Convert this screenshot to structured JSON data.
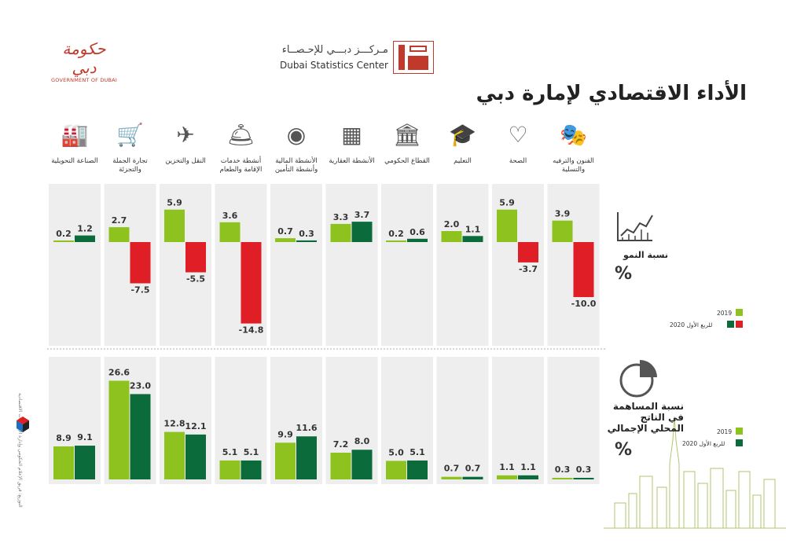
{
  "header": {
    "gov_logo_ar": "حكومة دبي",
    "gov_logo_en": "GOVERNMENT OF DUBAI",
    "dsc_ar": "مـركـــز دبـــي للإحـصــاء",
    "dsc_en": "Dubai Statistics Center"
  },
  "title": "الأداء الاقتصادي لإمارة دبي",
  "colors": {
    "y2019": "#8dc21f",
    "q1_2020_pos": "#0b6b3a",
    "q1_2020_neg": "#e01e26",
    "panel": "#eeeeee"
  },
  "growth_section": {
    "label": "نسبة النمو",
    "pct": "%",
    "legend_2019": "2019",
    "legend_2020": "للربع الأول 2020"
  },
  "share_section": {
    "label": "نسبة المساهمة في الناتج المحلي الإجمالي",
    "pct": "%",
    "legend_2019": "2019",
    "legend_2020": "للربع الأول 2020"
  },
  "side_credit": "التوزيع: فريق الإعلام الحكومي وإدارة الإحصاءات الاقتصادية",
  "chart_data": [
    {
      "type": "bar",
      "title": "نسبة النمو",
      "categories": [
        "الصناعة التحويلية",
        "تجارة الجملة والتجزئة",
        "النقل والتخزين",
        "أنشطة خدمات الإقامة والطعام",
        "الأنشطة المالية وأنشطة التأمين",
        "الأنشطة العقارية",
        "القطاع الحكومي",
        "التعليم",
        "الصحة",
        "الفنون والترفيه والتسلية"
      ],
      "icons": [
        "factory-robot-icon",
        "shopping-cart-icon",
        "plane-truck-icon",
        "food-cloche-icon",
        "coin-icon",
        "building-icon",
        "government-building-icon",
        "graduation-cap-icon",
        "heart-hands-icon",
        "theater-mask-icon"
      ],
      "series": [
        {
          "name": "2019",
          "values": [
            0.2,
            2.7,
            5.9,
            3.6,
            0.7,
            3.3,
            0.2,
            2.0,
            5.9,
            3.9
          ]
        },
        {
          "name": "للربع الأول 2020",
          "values": [
            1.2,
            -7.5,
            -5.5,
            -14.8,
            0.3,
            3.7,
            0.6,
            1.1,
            -3.7,
            -10.0
          ]
        }
      ],
      "labels": {
        "y2019": [
          "0.2",
          "2.7",
          "5.9",
          "3.6",
          "0.7",
          "3.3",
          "0.2",
          "2.0",
          "5.9",
          "3.9"
        ],
        "q1_2020": [
          "1.2",
          "-7.5",
          "-5.5",
          "-14.8",
          "0.3",
          "3.7",
          "0.6",
          "1.1",
          "-3.7",
          "-10.0"
        ]
      },
      "ylim": [
        -15,
        6.5
      ]
    },
    {
      "type": "bar",
      "title": "نسبة المساهمة في الناتج المحلي الإجمالي",
      "categories": [
        "الصناعة التحويلية",
        "تجارة الجملة والتجزئة",
        "النقل والتخزين",
        "أنشطة خدمات الإقامة والطعام",
        "الأنشطة المالية وأنشطة التأمين",
        "الأنشطة العقارية",
        "القطاع الحكومي",
        "التعليم",
        "الصحة",
        "الفنون والترفيه والتسلية"
      ],
      "series": [
        {
          "name": "2019",
          "values": [
            8.9,
            26.6,
            12.8,
            5.1,
            9.9,
            7.2,
            5.0,
            0.7,
            1.1,
            0.3
          ]
        },
        {
          "name": "للربع الأول 2020",
          "values": [
            9.1,
            23.0,
            12.1,
            5.1,
            11.6,
            8.0,
            5.1,
            0.7,
            1.1,
            0.3
          ]
        }
      ],
      "labels": {
        "y2019": [
          "8.9",
          "26.6",
          "12.8",
          "5.1",
          "9.9",
          "7.2",
          "5.0",
          "0.7",
          "1.1",
          "0.3"
        ],
        "q1_2020": [
          "9.1",
          "23.0",
          "12.1",
          "5.1",
          "11.6",
          "8.0",
          "5.1",
          "0.7",
          "1.1",
          "0.3"
        ]
      },
      "ylim": [
        0,
        28
      ]
    }
  ]
}
